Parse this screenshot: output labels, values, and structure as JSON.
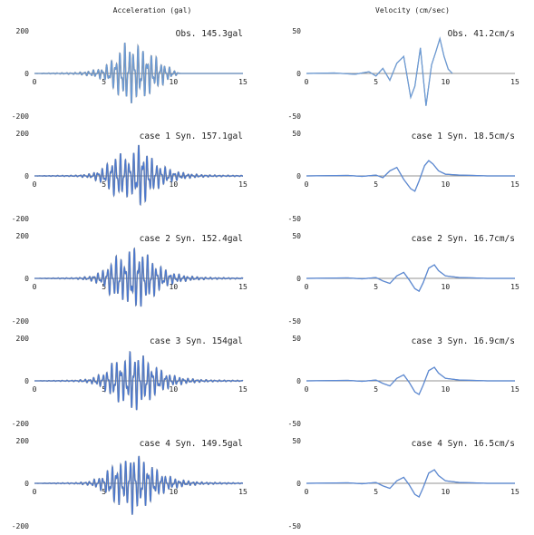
{
  "columns": [
    {
      "title": "Acceleration (gal)"
    },
    {
      "title": "Velocity (cm/sec)"
    }
  ],
  "chart_data": [
    {
      "type": "line",
      "quantity": "acceleration",
      "row": 0,
      "title": "Obs. 145.3gal",
      "xlim": [
        0,
        15
      ],
      "ylim": [
        -200,
        200
      ],
      "xticks": [
        0,
        5,
        10,
        15
      ],
      "yticks": [
        -200,
        0,
        200
      ],
      "series": [
        {
          "color": "#6a9bd8",
          "envelope": [
            [
              0,
              0
            ],
            [
              3,
              4
            ],
            [
              4,
              12
            ],
            [
              5,
              30
            ],
            [
              5.5,
              60
            ],
            [
              6,
              100
            ],
            [
              6.5,
              145
            ],
            [
              7,
              140
            ],
            [
              7.5,
              130
            ],
            [
              8,
              110
            ],
            [
              8.5,
              90
            ],
            [
              9,
              65
            ],
            [
              9.5,
              40
            ],
            [
              10,
              15
            ],
            [
              10.5,
              0
            ]
          ]
        }
      ]
    },
    {
      "type": "line",
      "quantity": "velocity",
      "row": 0,
      "title": "Obs. 41.2cm/s",
      "xlim": [
        0,
        15
      ],
      "ylim": [
        -50,
        50
      ],
      "xticks": [
        0,
        5,
        10,
        15
      ],
      "yticks": [
        -50,
        0,
        50
      ],
      "series": [
        {
          "color": "#6a9bd8",
          "points": [
            [
              0,
              0
            ],
            [
              2,
              0.5
            ],
            [
              3.5,
              -1
            ],
            [
              4.5,
              2
            ],
            [
              5,
              -3
            ],
            [
              5.5,
              6
            ],
            [
              6,
              -8
            ],
            [
              6.5,
              12
            ],
            [
              7,
              20
            ],
            [
              7.5,
              -28
            ],
            [
              7.8,
              -15
            ],
            [
              8.2,
              30
            ],
            [
              8.6,
              -38
            ],
            [
              9,
              10
            ],
            [
              9.3,
              25
            ],
            [
              9.6,
              41
            ],
            [
              9.9,
              20
            ],
            [
              10.2,
              5
            ],
            [
              10.5,
              0
            ]
          ]
        }
      ]
    },
    {
      "type": "line",
      "quantity": "acceleration",
      "row": 1,
      "title": "case 1 Syn. 157.1gal",
      "xlim": [
        0,
        15
      ],
      "ylim": [
        -200,
        200
      ],
      "xticks": [
        0,
        5,
        10,
        15
      ],
      "yticks": [
        -200,
        0,
        200
      ],
      "series": [
        {
          "color": "#4a78d0",
          "envelope": [
            [
              0,
              0
            ],
            [
              3,
              3
            ],
            [
              4,
              10
            ],
            [
              5,
              40
            ],
            [
              5.5,
              80
            ],
            [
              6,
              110
            ],
            [
              6.5,
              100
            ],
            [
              7,
              95
            ],
            [
              7.5,
              157
            ],
            [
              8,
              120
            ],
            [
              8.5,
              80
            ],
            [
              9,
              55
            ],
            [
              9.5,
              40
            ],
            [
              10,
              25
            ],
            [
              11,
              12
            ],
            [
              12,
              6
            ],
            [
              13,
              4
            ],
            [
              15,
              2
            ]
          ]
        }
      ]
    },
    {
      "type": "line",
      "quantity": "velocity",
      "row": 1,
      "title": "case 1 Syn. 18.5cm/s",
      "xlim": [
        0,
        15
      ],
      "ylim": [
        -50,
        50
      ],
      "xticks": [
        0,
        5,
        10,
        15
      ],
      "yticks": [
        -50,
        0,
        50
      ],
      "series": [
        {
          "color": "#5a8ad8",
          "points": [
            [
              0,
              0
            ],
            [
              3,
              0.5
            ],
            [
              4,
              -0.5
            ],
            [
              5,
              1
            ],
            [
              5.5,
              -2
            ],
            [
              6,
              6
            ],
            [
              6.5,
              10
            ],
            [
              7,
              -4
            ],
            [
              7.5,
              -15
            ],
            [
              7.8,
              -18
            ],
            [
              8.1,
              -6
            ],
            [
              8.5,
              12
            ],
            [
              8.8,
              18
            ],
            [
              9.1,
              14
            ],
            [
              9.5,
              6
            ],
            [
              10,
              2
            ],
            [
              11,
              1
            ],
            [
              12,
              0.5
            ],
            [
              13,
              0
            ],
            [
              15,
              0
            ]
          ]
        }
      ]
    },
    {
      "type": "line",
      "quantity": "acceleration",
      "row": 2,
      "title": "case 2 Syn. 152.4gal",
      "xlim": [
        0,
        15
      ],
      "ylim": [
        -200,
        200
      ],
      "xticks": [
        0,
        5,
        10,
        15
      ],
      "yticks": [
        -200,
        0,
        200
      ],
      "series": [
        {
          "color": "#4a78d0",
          "envelope": [
            [
              0,
              0
            ],
            [
              3,
              3
            ],
            [
              4,
              10
            ],
            [
              5,
              40
            ],
            [
              5.5,
              85
            ],
            [
              6,
              110
            ],
            [
              6.5,
              100
            ],
            [
              7,
              152
            ],
            [
              7.5,
              140
            ],
            [
              8,
              120
            ],
            [
              8.5,
              90
            ],
            [
              9,
              60
            ],
            [
              9.5,
              40
            ],
            [
              10,
              25
            ],
            [
              11,
              12
            ],
            [
              12,
              6
            ],
            [
              13,
              4
            ],
            [
              15,
              2
            ]
          ]
        }
      ]
    },
    {
      "type": "line",
      "quantity": "velocity",
      "row": 2,
      "title": "case 2 Syn. 16.7cm/s",
      "xlim": [
        0,
        15
      ],
      "ylim": [
        -50,
        50
      ],
      "xticks": [
        0,
        5,
        10,
        15
      ],
      "yticks": [
        -50,
        0,
        50
      ],
      "series": [
        {
          "color": "#5a8ad8",
          "points": [
            [
              0,
              0
            ],
            [
              3,
              0.5
            ],
            [
              4,
              -0.5
            ],
            [
              5,
              1
            ],
            [
              5.5,
              -3
            ],
            [
              6,
              -6
            ],
            [
              6.5,
              3
            ],
            [
              7,
              7
            ],
            [
              7.4,
              -2
            ],
            [
              7.8,
              -12
            ],
            [
              8.1,
              -15
            ],
            [
              8.4,
              -5
            ],
            [
              8.8,
              12
            ],
            [
              9.2,
              16
            ],
            [
              9.5,
              9
            ],
            [
              10,
              3
            ],
            [
              11,
              1
            ],
            [
              12,
              0.5
            ],
            [
              13,
              0
            ],
            [
              15,
              0
            ]
          ]
        }
      ]
    },
    {
      "type": "line",
      "quantity": "acceleration",
      "row": 3,
      "title": "case 3 Syn. 154gal",
      "xlim": [
        0,
        15
      ],
      "ylim": [
        -200,
        200
      ],
      "xticks": [
        0,
        5,
        10,
        15
      ],
      "yticks": [
        -200,
        0,
        200
      ],
      "series": [
        {
          "color": "#4a78d0",
          "envelope": [
            [
              0,
              0
            ],
            [
              3,
              3
            ],
            [
              4,
              10
            ],
            [
              5,
              40
            ],
            [
              5.5,
              80
            ],
            [
              6,
              105
            ],
            [
              6.5,
              100
            ],
            [
              7,
              154
            ],
            [
              7.5,
              130
            ],
            [
              8,
              110
            ],
            [
              8.5,
              80
            ],
            [
              9,
              55
            ],
            [
              9.5,
              40
            ],
            [
              10,
              25
            ],
            [
              11,
              12
            ],
            [
              12,
              6
            ],
            [
              13,
              4
            ],
            [
              15,
              2
            ]
          ]
        }
      ]
    },
    {
      "type": "line",
      "quantity": "velocity",
      "row": 3,
      "title": "case 3 Syn. 16.9cm/s",
      "xlim": [
        0,
        15
      ],
      "ylim": [
        -50,
        50
      ],
      "xticks": [
        0,
        5,
        10,
        15
      ],
      "yticks": [
        -50,
        0,
        50
      ],
      "series": [
        {
          "color": "#5a8ad8",
          "points": [
            [
              0,
              0
            ],
            [
              3,
              0.5
            ],
            [
              4,
              -0.5
            ],
            [
              5,
              1
            ],
            [
              5.5,
              -3
            ],
            [
              6,
              -6
            ],
            [
              6.5,
              3
            ],
            [
              7,
              7
            ],
            [
              7.4,
              -2
            ],
            [
              7.8,
              -13
            ],
            [
              8.1,
              -16
            ],
            [
              8.4,
              -5
            ],
            [
              8.8,
              12
            ],
            [
              9.2,
              16
            ],
            [
              9.5,
              9
            ],
            [
              10,
              3
            ],
            [
              11,
              1
            ],
            [
              12,
              0.5
            ],
            [
              13,
              0
            ],
            [
              15,
              0
            ]
          ]
        }
      ]
    },
    {
      "type": "line",
      "quantity": "acceleration",
      "row": 4,
      "title": "case 4 Syn. 149.5gal",
      "xlim": [
        0,
        15
      ],
      "ylim": [
        -200,
        200
      ],
      "xticks": [
        0,
        5,
        10,
        15
      ],
      "yticks": [
        -200,
        0,
        200
      ],
      "series": [
        {
          "color": "#4a78d0",
          "envelope": [
            [
              0,
              0
            ],
            [
              3,
              3
            ],
            [
              4,
              10
            ],
            [
              5,
              40
            ],
            [
              5.5,
              80
            ],
            [
              6,
              105
            ],
            [
              6.5,
              100
            ],
            [
              7,
              149
            ],
            [
              7.5,
              130
            ],
            [
              8,
              110
            ],
            [
              8.5,
              80
            ],
            [
              9,
              55
            ],
            [
              9.5,
              40
            ],
            [
              10,
              25
            ],
            [
              11,
              12
            ],
            [
              12,
              6
            ],
            [
              13,
              4
            ],
            [
              15,
              2
            ]
          ]
        }
      ]
    },
    {
      "type": "line",
      "quantity": "velocity",
      "row": 4,
      "title": "case 4 Syn. 16.5cm/s",
      "xlim": [
        0,
        15
      ],
      "ylim": [
        -50,
        50
      ],
      "xticks": [
        0,
        5,
        10,
        15
      ],
      "yticks": [
        -50,
        0,
        50
      ],
      "series": [
        {
          "color": "#5a8ad8",
          "points": [
            [
              0,
              0
            ],
            [
              3,
              0.5
            ],
            [
              4,
              -0.5
            ],
            [
              5,
              1
            ],
            [
              5.5,
              -3
            ],
            [
              6,
              -6
            ],
            [
              6.5,
              3
            ],
            [
              7,
              7
            ],
            [
              7.4,
              -2
            ],
            [
              7.8,
              -13
            ],
            [
              8.1,
              -16
            ],
            [
              8.4,
              -5
            ],
            [
              8.8,
              12
            ],
            [
              9.2,
              16
            ],
            [
              9.5,
              9
            ],
            [
              10,
              3
            ],
            [
              11,
              1
            ],
            [
              12,
              0.5
            ],
            [
              13,
              0
            ],
            [
              15,
              0
            ]
          ]
        }
      ]
    }
  ]
}
